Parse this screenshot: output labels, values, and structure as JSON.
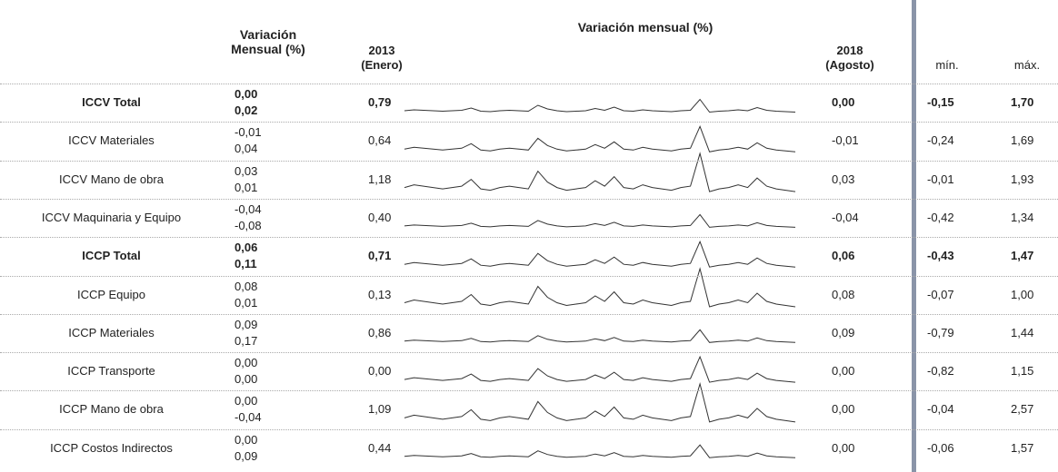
{
  "header": {
    "variation": "Variación\nMensual (%)",
    "start": "2013\n(Enero)",
    "trend": "Variación mensual (%)",
    "end": "2018\n(Agosto)",
    "min": "mín.",
    "max": "máx."
  },
  "rows": [
    {
      "name": "ICCV Total",
      "v1": "0,00",
      "v2": "0,02",
      "start": "0,79",
      "end": "0,00",
      "min": "-0,15",
      "max": "1,70",
      "bold": true
    },
    {
      "name": "ICCV Materiales",
      "v1": "-0,01",
      "v2": "0,04",
      "start": "0,64",
      "end": "-0,01",
      "min": "-0,24",
      "max": "1,69",
      "bold": false
    },
    {
      "name": "ICCV Mano de obra",
      "v1": "0,03",
      "v2": "0,01",
      "start": "1,18",
      "end": "0,03",
      "min": "-0,01",
      "max": "1,93",
      "bold": false
    },
    {
      "name": "ICCV Maquinaria y Equipo",
      "v1": "-0,04",
      "v2": "-0,08",
      "start": "0,40",
      "end": "-0,04",
      "min": "-0,42",
      "max": "1,34",
      "bold": false
    },
    {
      "name": "ICCP Total",
      "v1": "0,06",
      "v2": "0,11",
      "start": "0,71",
      "end": "0,06",
      "min": "-0,43",
      "max": "1,47",
      "bold": true
    },
    {
      "name": "ICCP Equipo",
      "v1": "0,08",
      "v2": "0,01",
      "start": "0,13",
      "end": "0,08",
      "min": "-0,07",
      "max": "1,00",
      "bold": false
    },
    {
      "name": "ICCP Materiales",
      "v1": "0,09",
      "v2": "0,17",
      "start": "0,86",
      "end": "0,09",
      "min": "-0,79",
      "max": "1,44",
      "bold": false
    },
    {
      "name": "ICCP Transporte",
      "v1": "0,00",
      "v2": "0,00",
      "start": "0,00",
      "end": "0,00",
      "min": "-0,82",
      "max": "1,15",
      "bold": false
    },
    {
      "name": "ICCP Mano de obra",
      "v1": "0,00",
      "v2": "-0,04",
      "start": "1,09",
      "end": "0,00",
      "min": "-0,04",
      "max": "2,57",
      "bold": false
    },
    {
      "name": "ICCP Costos Indirectos",
      "v1": "0,00",
      "v2": "0,09",
      "start": "0,44",
      "end": "0,00",
      "min": "-0,06",
      "max": "1,57",
      "bold": false
    }
  ]
}
